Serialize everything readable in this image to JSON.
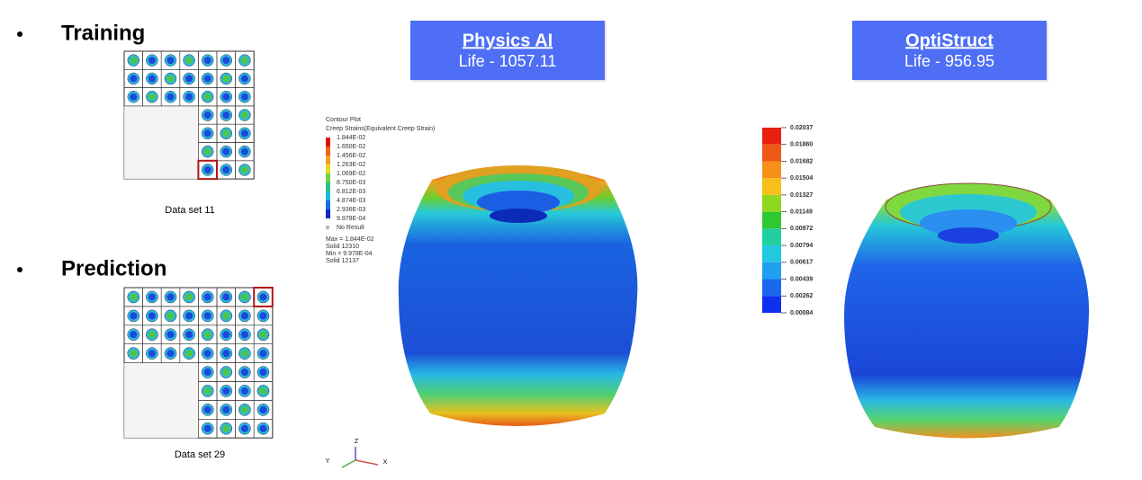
{
  "training": {
    "title": "Training",
    "caption": "Data set 11"
  },
  "prediction": {
    "title": "Prediction",
    "caption": "Data set 29"
  },
  "physics_ai": {
    "title": "Physics AI",
    "life": "Life - 1057.11",
    "legend": {
      "title": "Contour Plot",
      "subtitle": "Creep Strains(Equivalent Creep Strain)",
      "labels": [
        "1.844E-02",
        "1.650E-02",
        "1.456E-02",
        "1.263E-02",
        "1.069E-02",
        "8.750E-03",
        "6.812E-03",
        "4.874E-03",
        "2.936E-03",
        "9.978E-04"
      ],
      "no_result": "No Result",
      "stats": [
        "Max = 1.844E-02",
        "Solid 12310",
        "Min = 9.978E-04",
        "Solid 12137"
      ]
    }
  },
  "optistruct": {
    "title": "OptiStruct",
    "life": "Life - 956.95",
    "legend": {
      "labels": [
        "0.02037",
        "0.01860",
        "0.01682",
        "0.01504",
        "0.01327",
        "0.01149",
        "0.00972",
        "0.00794",
        "0.00617",
        "0.00439",
        "0.00262",
        "0.00084"
      ]
    }
  },
  "axes": [
    "Z",
    "Y",
    "X"
  ]
}
